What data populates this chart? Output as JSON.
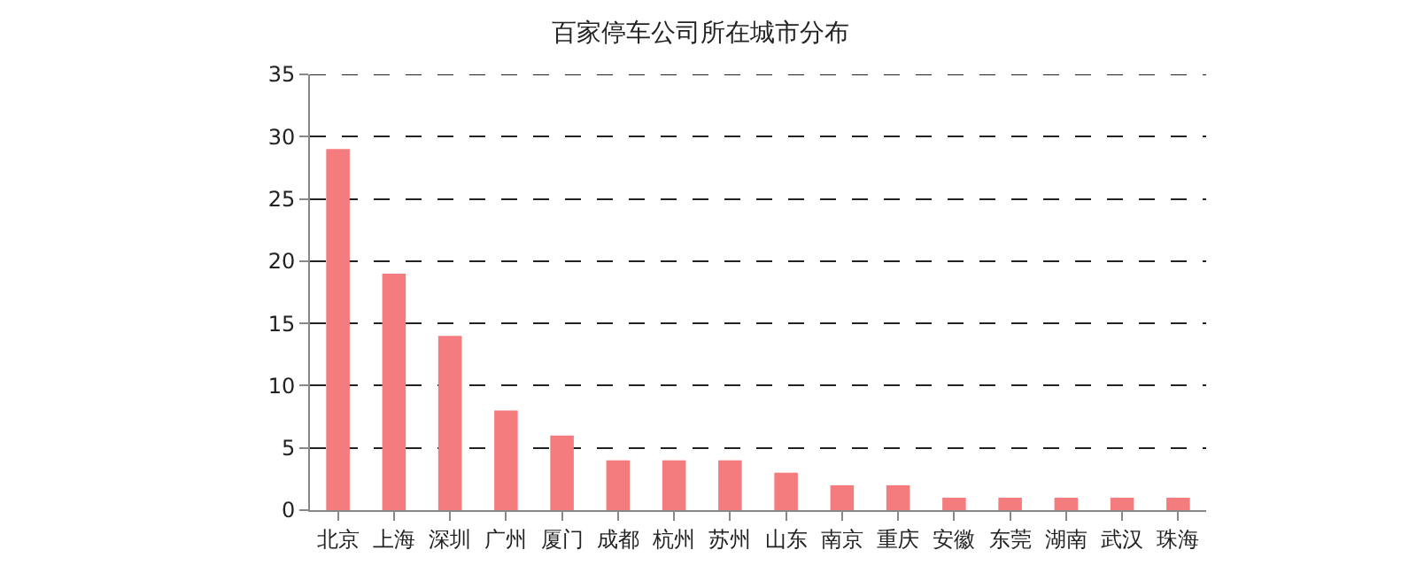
{
  "chart_data": {
    "type": "bar",
    "title": "百家停车公司所在城市分布",
    "categories": [
      "北京",
      "上海",
      "深圳",
      "广州",
      "厦门",
      "成都",
      "杭州",
      "苏州",
      "山东",
      "南京",
      "重庆",
      "安徽",
      "东莞",
      "湖南",
      "武汉",
      "珠海"
    ],
    "values": [
      29,
      19,
      14,
      8,
      6,
      4,
      4,
      4,
      3,
      2,
      2,
      1,
      1,
      1,
      1,
      1
    ],
    "color": "#f47c7e",
    "ylim": [
      0,
      35
    ],
    "yticks": [
      0,
      5,
      10,
      15,
      20,
      25,
      30,
      35
    ],
    "grid": "y"
  }
}
